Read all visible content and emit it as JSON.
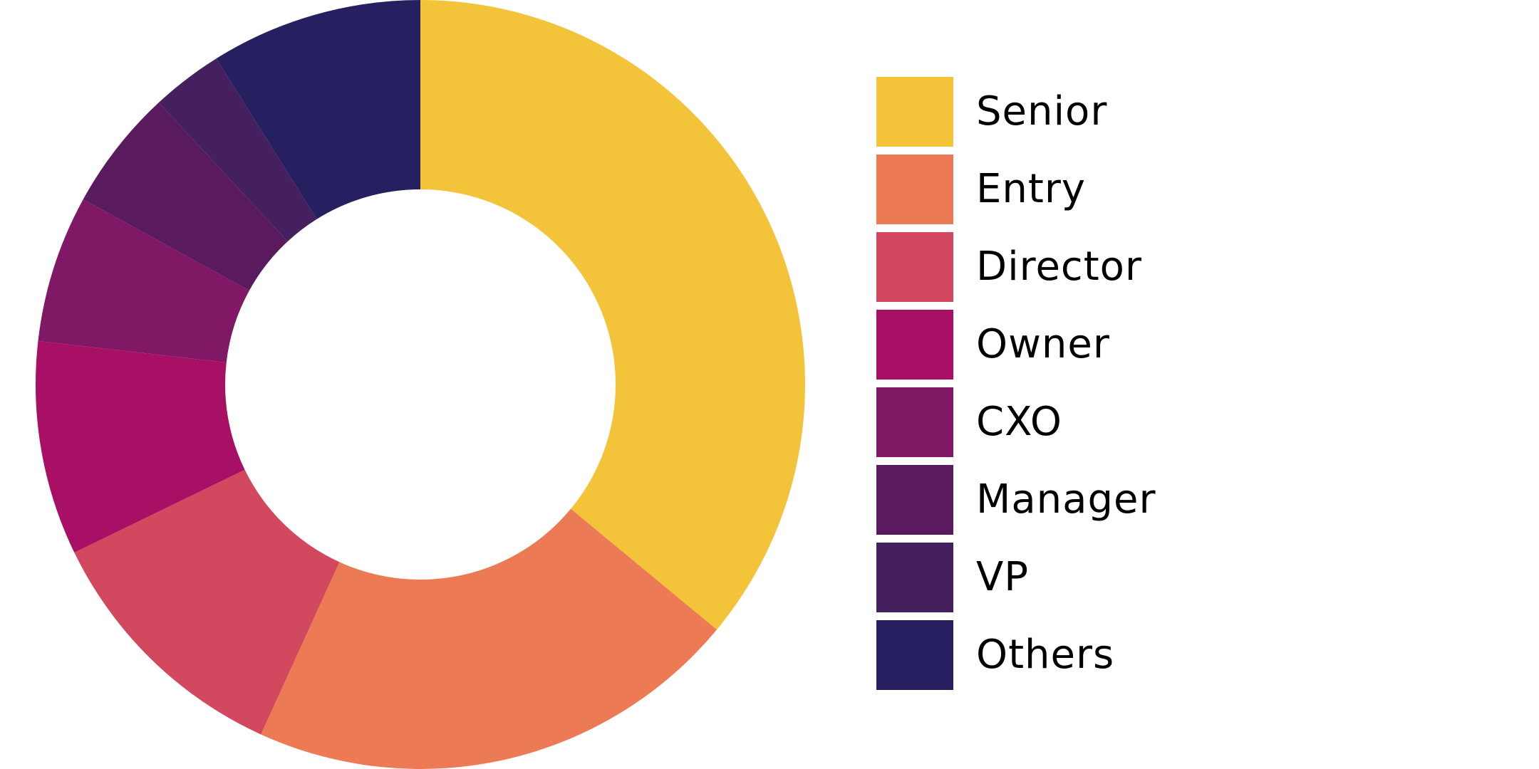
{
  "chart_data": {
    "type": "pie",
    "subtype": "donut",
    "title": "",
    "start_angle_deg": 0,
    "direction": "clockwise",
    "inner_radius_ratio": 0.51,
    "legend_position": "right",
    "categories": [
      "Senior",
      "Entry",
      "Director",
      "Owner",
      "CXO",
      "Manager",
      "VP",
      "Others"
    ],
    "values": [
      36.0,
      20.8,
      11.0,
      9.0,
      6.2,
      5.1,
      3.0,
      8.9
    ],
    "unit": "%",
    "colors": [
      "#f3c43a",
      "#ec7b55",
      "#d2485e",
      "#a81065",
      "#801865",
      "#5a1a5e",
      "#44205f",
      "#262060"
    ]
  },
  "legend": {
    "items": [
      {
        "label": "Senior",
        "color": "#f3c43a"
      },
      {
        "label": "Entry",
        "color": "#ec7b55"
      },
      {
        "label": "Director",
        "color": "#d2485e"
      },
      {
        "label": "Owner",
        "color": "#a81065"
      },
      {
        "label": "CXO",
        "color": "#801865"
      },
      {
        "label": "Manager",
        "color": "#5a1a5e"
      },
      {
        "label": "VP",
        "color": "#44205f"
      },
      {
        "label": "Others",
        "color": "#262060"
      }
    ]
  }
}
